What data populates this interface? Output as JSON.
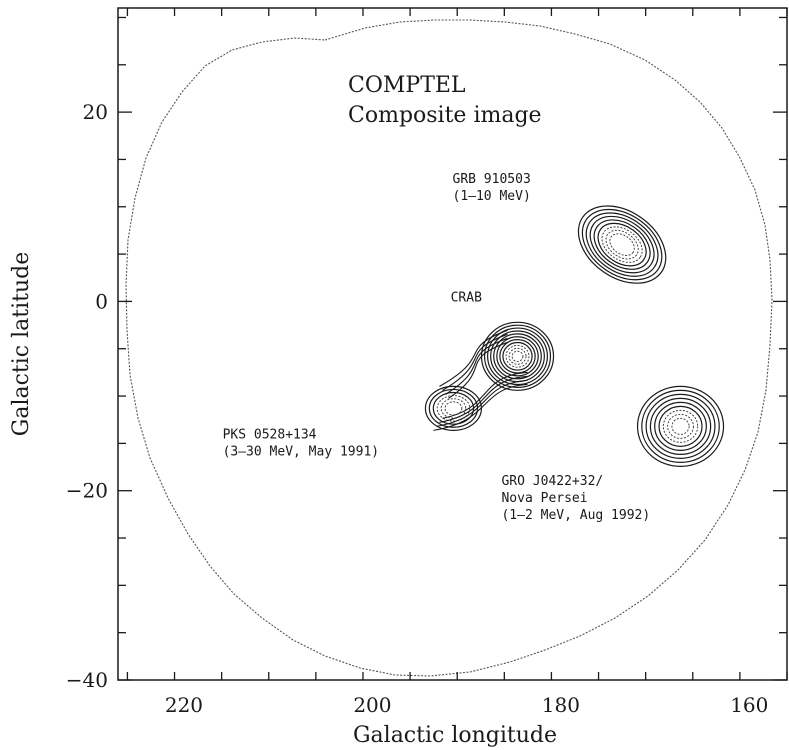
{
  "chart_data": {
    "type": "contour",
    "title": "COMPTEL",
    "subtitle": "Composite image",
    "xlabel": "Galactic longitude",
    "ylabel": "Galactic latitude",
    "xlim": [
      227,
      156
    ],
    "ylim": [
      -40,
      31
    ],
    "x_reversed": true,
    "x_ticks": [
      220,
      200,
      180,
      160
    ],
    "y_ticks": [
      20,
      0,
      -20,
      -40
    ],
    "x_tick_labels": [
      "220",
      "200",
      "180",
      "160"
    ],
    "y_tick_labels": [
      "20",
      "0",
      "−20",
      "−40"
    ],
    "sources": [
      {
        "id": "grb",
        "label_lines": [
          "GRB 910503",
          "(1–10 MeV)"
        ],
        "l": 173.5,
        "b": 6.0,
        "label_l": 191.5,
        "label_b": 12.5
      },
      {
        "id": "crab",
        "label_lines": [
          "CRAB"
        ],
        "l": 184.6,
        "b": -5.8,
        "label_l": 191.7,
        "label_b": 0.0
      },
      {
        "id": "pks",
        "label_lines": [
          "PKS 0528+134",
          "(3–30 MeV, May 1991)"
        ],
        "l": 191.4,
        "b": -11.3,
        "label_l": 215.9,
        "label_b": -14.5
      },
      {
        "id": "gro",
        "label_lines": [
          "GRO J0422+32/",
          "Nova Persei",
          "(1–2 MeV, Aug 1992)"
        ],
        "l": 167.3,
        "b": -13.2,
        "label_l": 186.3,
        "label_b": -19.4
      }
    ]
  }
}
